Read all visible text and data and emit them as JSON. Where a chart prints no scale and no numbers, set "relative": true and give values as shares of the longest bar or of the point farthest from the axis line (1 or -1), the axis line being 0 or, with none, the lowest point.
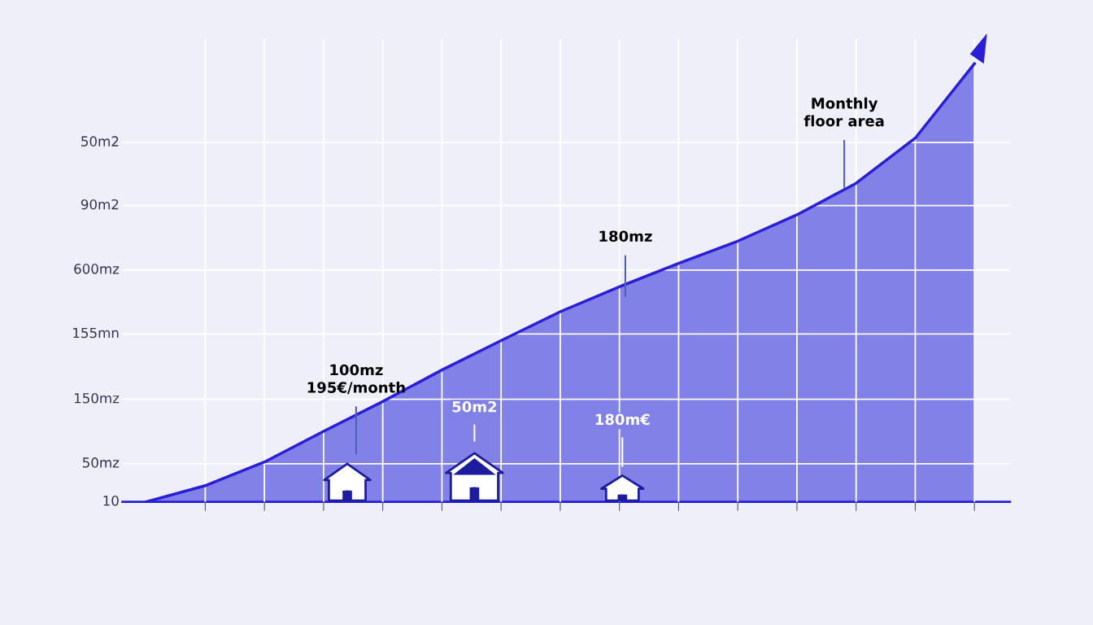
{
  "chart_data": {
    "type": "area",
    "relative": true,
    "categories": [
      null,
      null,
      null,
      null,
      null,
      null,
      null,
      null,
      null,
      null,
      null,
      null,
      null,
      null,
      null
    ],
    "series": [
      {
        "color": "#2b1fd6",
        "values": [
          0,
          0.037,
          0.091,
          0.161,
          0.229,
          0.301,
          0.368,
          0.434,
          0.491,
          0.544,
          0.595,
          0.655,
          0.727,
          0.83,
          1
        ]
      }
    ],
    "annotations": [
      "10",
      "50mz",
      "150mz",
      "155mn",
      "600mz",
      "90m2",
      "50m2",
      "100mz\n195€/month",
      "50m2",
      "180m€",
      "180mz",
      "Monthly\nfloor area"
    ],
    "grid": true,
    "marker": "none",
    "line_style": "solid"
  }
}
